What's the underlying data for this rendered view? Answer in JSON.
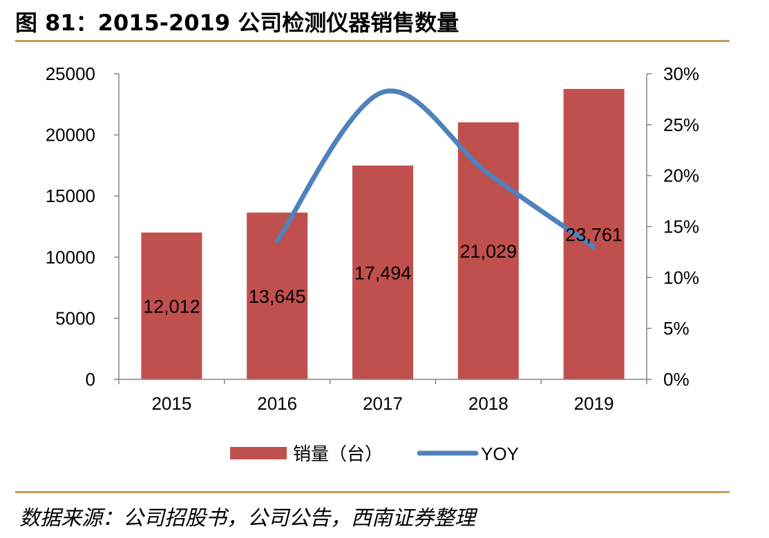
{
  "title": "图 81：2015-2019 公司检测仪器销售数量",
  "source": "数据来源：公司招股书，公司公告，西南证券整理",
  "colors": {
    "bar": "#c0504d",
    "line": "#4f81bd",
    "rule": "#c89a57",
    "axis": "#868686"
  },
  "chart_data": {
    "type": "bar",
    "categories": [
      "2015",
      "2016",
      "2017",
      "2018",
      "2019"
    ],
    "series": [
      {
        "name": "销量（台）",
        "type": "bar",
        "axis": "left",
        "values": [
          12012,
          13645,
          17494,
          21029,
          23761
        ],
        "labels": [
          "12,012",
          "13,645",
          "17,494",
          "21,029",
          "23,761"
        ]
      },
      {
        "name": "YOY",
        "type": "line",
        "axis": "right",
        "values": [
          null,
          0.136,
          0.282,
          0.202,
          0.13
        ]
      }
    ],
    "y_left": {
      "ylim": [
        0,
        25000
      ],
      "ticks": [
        "0",
        "5000",
        "10000",
        "15000",
        "20000",
        "25000"
      ]
    },
    "y_right": {
      "ylim": [
        0,
        0.3
      ],
      "ticks": [
        "0%",
        "5%",
        "10%",
        "15%",
        "20%",
        "25%",
        "30%"
      ]
    },
    "legend_position": "bottom",
    "grid": false
  }
}
